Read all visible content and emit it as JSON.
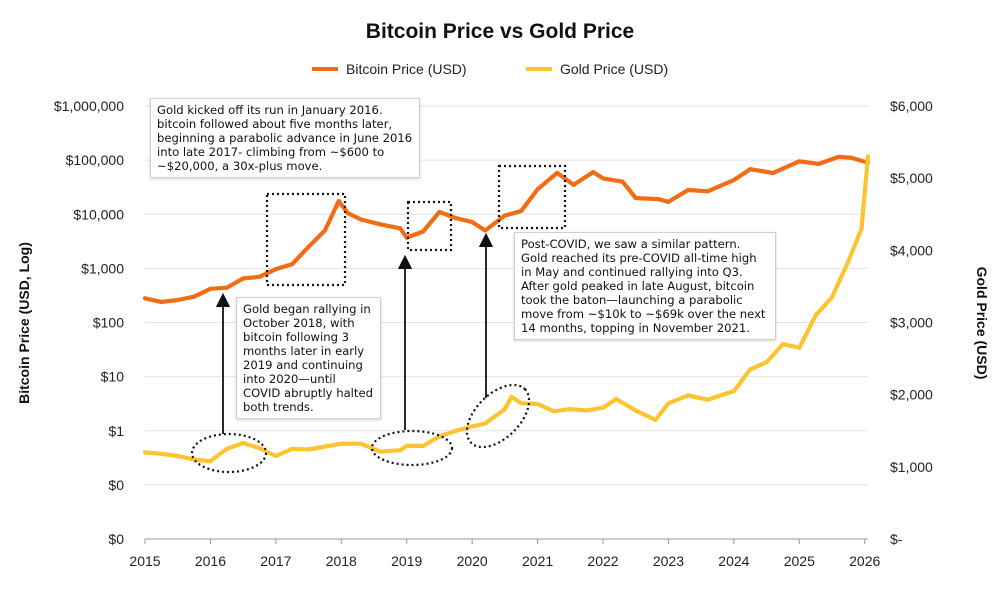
{
  "chart_data": {
    "type": "line",
    "title": "Bitcoin Price vs Gold Price",
    "left_axis_label": "Bitcoin Price (USD, Log)",
    "right_axis_label": "Gold Price (USD)",
    "left_scale": "log",
    "left_ticks": [
      "$0",
      "$0",
      "$1",
      "$10",
      "$100",
      "$1,000",
      "$10,000",
      "$100,000",
      "$1,000,000"
    ],
    "right_ticks": [
      "$-",
      "$1,000",
      "$2,000",
      "$3,000",
      "$4,000",
      "$5,000",
      "$6,000"
    ],
    "right_ylim": [
      0,
      6000
    ],
    "x_ticks": [
      "2015",
      "2016",
      "2017",
      "2018",
      "2019",
      "2020",
      "2021",
      "2022",
      "2023",
      "2024",
      "2025",
      "2026"
    ],
    "legend_position": "top-center",
    "grid": "horizontal",
    "colors": {
      "bitcoin": "#f26b15",
      "gold": "#fcc431",
      "text": "#111111",
      "grid": "#e3e3e3"
    },
    "series": [
      {
        "name": "Bitcoin Price (USD)",
        "axis": "left",
        "x": [
          2015.0,
          2015.25,
          2015.5,
          2015.75,
          2016.0,
          2016.25,
          2016.5,
          2016.75,
          2017.0,
          2017.25,
          2017.5,
          2017.75,
          2017.96,
          2018.1,
          2018.3,
          2018.6,
          2018.9,
          2019.0,
          2019.25,
          2019.5,
          2019.75,
          2020.0,
          2020.2,
          2020.5,
          2020.75,
          2021.0,
          2021.3,
          2021.55,
          2021.85,
          2022.0,
          2022.3,
          2022.5,
          2022.85,
          2023.0,
          2023.3,
          2023.6,
          2024.0,
          2024.25,
          2024.6,
          2025.0,
          2025.3,
          2025.6,
          2025.8,
          2026.05
        ],
        "values": [
          280,
          240,
          260,
          300,
          420,
          440,
          650,
          700,
          970,
          1200,
          2500,
          5000,
          17500,
          10500,
          8000,
          6500,
          5500,
          3700,
          4800,
          11000,
          8500,
          7200,
          5000,
          9500,
          11500,
          29000,
          58000,
          35000,
          60000,
          46000,
          40000,
          20000,
          19000,
          17000,
          28000,
          26500,
          43000,
          68000,
          58000,
          95000,
          85000,
          115000,
          110000,
          90000
        ]
      },
      {
        "name": "Gold Price (USD)",
        "axis": "right",
        "x": [
          2015.0,
          2015.25,
          2015.5,
          2015.75,
          2016.0,
          2016.25,
          2016.5,
          2016.75,
          2017.0,
          2017.25,
          2017.5,
          2017.75,
          2018.0,
          2018.3,
          2018.6,
          2018.9,
          2019.0,
          2019.25,
          2019.5,
          2019.75,
          2020.0,
          2020.2,
          2020.5,
          2020.6,
          2020.75,
          2021.0,
          2021.25,
          2021.5,
          2021.75,
          2022.0,
          2022.2,
          2022.5,
          2022.8,
          2023.0,
          2023.3,
          2023.6,
          2023.8,
          2024.0,
          2024.25,
          2024.5,
          2024.75,
          2025.0,
          2025.25,
          2025.5,
          2025.75,
          2025.95,
          2026.05
        ],
        "values": [
          1200,
          1180,
          1150,
          1100,
          1080,
          1250,
          1330,
          1260,
          1150,
          1250,
          1240,
          1280,
          1320,
          1320,
          1210,
          1230,
          1290,
          1290,
          1420,
          1500,
          1560,
          1600,
          1800,
          1970,
          1880,
          1870,
          1770,
          1800,
          1780,
          1820,
          1940,
          1780,
          1650,
          1880,
          1990,
          1930,
          1990,
          2050,
          2350,
          2450,
          2700,
          2650,
          3100,
          3350,
          3850,
          4300,
          5300
        ]
      }
    ],
    "annotations": [
      "Gold kicked off its run in January 2016. bitcoin followed about five months later, beginning a parabolic advance in June 2016 into late 2017- climbing from ~$600 to ~$20,000, a 30x-plus move.",
      "Gold began rallying in October 2018, with bitcoin following  3 months later in early 2019 and continuing into 2020—until COVID abruptly halted both trends.",
      "Post-COVID, we saw a similar pattern. Gold reached its pre-COVID all-time high in May and continued rallying into Q3. After gold peaked in late August, bitcoin took the baton—launching a parabolic move from ~$10k to ~$69k over the next 14 months, topping in November 2021."
    ]
  }
}
